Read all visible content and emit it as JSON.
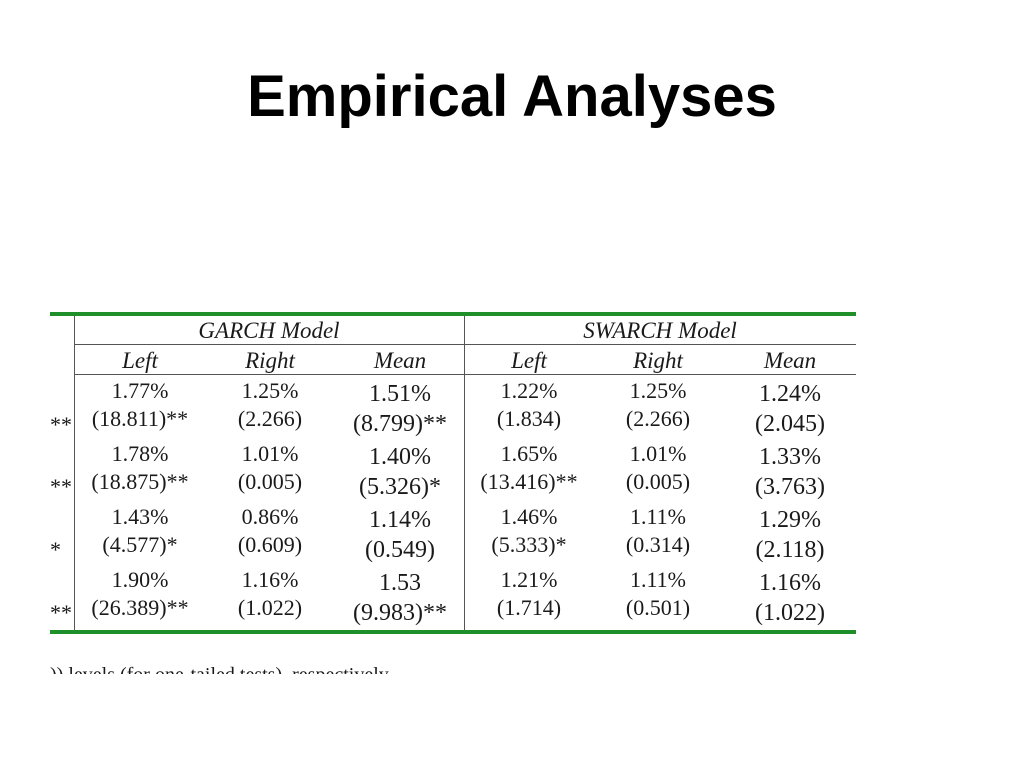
{
  "slide": {
    "title": "Empirical Analyses"
  },
  "table": {
    "groups": [
      "GARCH Model",
      "SWARCH Model"
    ],
    "columns": [
      "Left",
      "Right",
      "Mean",
      "Left",
      "Right",
      "Mean"
    ],
    "row_stubs": [
      "**",
      "**",
      "*",
      "**"
    ],
    "rows": [
      {
        "values": [
          "1.77%",
          "1.25%",
          "1.51%",
          "1.22%",
          "1.25%",
          "1.24%"
        ],
        "stats": [
          "(18.811)**",
          "(2.266)",
          "(8.799)**",
          "(1.834)",
          "(2.266)",
          "(2.045)"
        ]
      },
      {
        "values": [
          "1.78%",
          "1.01%",
          "1.40%",
          "1.65%",
          "1.01%",
          "1.33%"
        ],
        "stats": [
          "(18.875)**",
          "(0.005)",
          "(5.326)*",
          "(13.416)**",
          "(0.005)",
          "(3.763)"
        ]
      },
      {
        "values": [
          "1.43%",
          "0.86%",
          "1.14%",
          "1.46%",
          "1.11%",
          "1.29%"
        ],
        "stats": [
          "(4.577)*",
          "(0.609)",
          "(0.549)",
          "(5.333)*",
          "(0.314)",
          "(2.118)"
        ]
      },
      {
        "values": [
          "1.90%",
          "1.16%",
          "1.53",
          "1.21%",
          "1.11%",
          "1.16%"
        ],
        "stats": [
          "(26.389)**",
          "(1.022)",
          "(9.983)**",
          "(1.714)",
          "(0.501)",
          "(1.022)"
        ]
      }
    ],
    "footnote": ")) levels (for one-tailed tests), respectively."
  },
  "colors": {
    "rule": "#1f8f2a",
    "text": "#1a1a1a"
  }
}
